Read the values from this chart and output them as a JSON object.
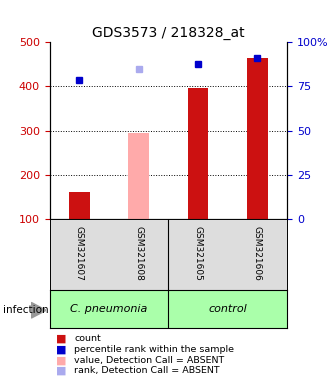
{
  "title": "GDS3573 / 218328_at",
  "samples": [
    "GSM321607",
    "GSM321608",
    "GSM321605",
    "GSM321606"
  ],
  "bar_values": [
    160,
    295,
    397,
    465
  ],
  "bar_colors": [
    "#cc1111",
    "#ffaaaa",
    "#cc1111",
    "#cc1111"
  ],
  "square_values": [
    415,
    440,
    450,
    465
  ],
  "square_colors": [
    "#0000cc",
    "#aaaaee",
    "#0000cc",
    "#0000cc"
  ],
  "group_labels": [
    "C. pneumonia",
    "control"
  ],
  "group_color": "#aaffaa",
  "ylim_left": [
    100,
    500
  ],
  "ylim_right": [
    0,
    100
  ],
  "yticks_left": [
    100,
    200,
    300,
    400,
    500
  ],
  "yticks_right": [
    0,
    25,
    50,
    75,
    100
  ],
  "ytick_labels_right": [
    "0",
    "25",
    "50",
    "75",
    "100%"
  ],
  "legend": [
    {
      "label": "count",
      "color": "#cc1111"
    },
    {
      "label": "percentile rank within the sample",
      "color": "#0000cc"
    },
    {
      "label": "value, Detection Call = ABSENT",
      "color": "#ffaaaa"
    },
    {
      "label": "rank, Detection Call = ABSENT",
      "color": "#aaaaee"
    }
  ],
  "infection_label": "infection",
  "bg_color": "#ffffff",
  "plot_bg": "#ffffff",
  "tick_label_color_left": "#cc0000",
  "tick_label_color_right": "#0000cc",
  "sample_bg": "#dddddd"
}
